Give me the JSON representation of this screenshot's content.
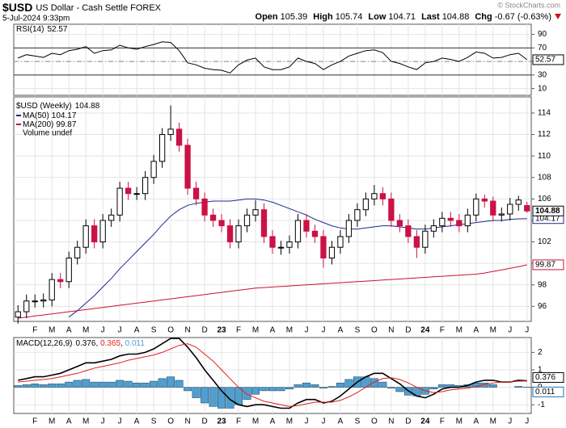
{
  "header": {
    "symbol": "$USD",
    "name": "US Dollar - Cash Settle FOREX",
    "date": "5-Jul-2024 9:33pm",
    "credit": "© StockCharts.com",
    "quote": [
      {
        "label": "Open",
        "value": 105.39
      },
      {
        "label": "High",
        "value": 105.74
      },
      {
        "label": "Low",
        "value": 104.71
      },
      {
        "label": "Last",
        "value": 104.88
      },
      {
        "label": "Chg",
        "value": -0.67,
        "pct": "(-0.63%)"
      }
    ]
  },
  "chart_data": [
    {
      "type": "line",
      "ylim": [
        0,
        105
      ],
      "yticks": [
        10,
        30,
        50,
        70,
        90
      ],
      "overbought": 70,
      "oversold": 30,
      "midline": 50,
      "grid": true,
      "series": [
        {
          "name": "RSI(14)",
          "color": "#000000",
          "values": [
            55,
            60,
            58,
            56,
            62,
            60,
            66,
            68,
            72,
            62,
            66,
            67,
            74,
            70,
            68,
            72,
            75,
            79,
            78,
            66,
            48,
            45,
            40,
            38,
            37,
            33,
            45,
            52,
            55,
            42,
            38,
            38,
            42,
            55,
            50,
            47,
            38,
            45,
            50,
            58,
            62,
            66,
            67,
            63,
            50,
            47,
            42,
            38,
            48,
            50,
            55,
            53,
            50,
            56,
            64,
            62,
            55,
            56,
            60,
            62,
            52.57
          ]
        }
      ]
    },
    {
      "type": "candlestick",
      "legend_title": "$USD (Weekly)",
      "volume_label": "Volume undef",
      "up_color": "#000000",
      "down_color": "#cc1144",
      "grid": true,
      "ylim": [
        94.6,
        115.5
      ],
      "yticks": [
        96,
        98,
        100,
        102,
        104,
        106,
        108,
        110,
        112,
        114
      ],
      "categories": [
        null,
        null,
        "F",
        null,
        "M",
        null,
        "A",
        null,
        "M",
        null,
        "J",
        null,
        "J",
        null,
        "A",
        null,
        "S",
        null,
        "O",
        null,
        "N",
        null,
        "D",
        null,
        "23",
        null,
        "F",
        null,
        "M",
        null,
        "A",
        null,
        "M",
        null,
        "J",
        null,
        "J",
        null,
        "A",
        null,
        "S",
        null,
        "O",
        null,
        "N",
        null,
        "D",
        null,
        "24",
        null,
        "F",
        null,
        "M",
        null,
        "A",
        null,
        "M",
        null,
        "J",
        null,
        "J"
      ],
      "open": [
        95.0,
        95.5,
        96.5,
        96.5,
        96.6,
        98.5,
        98.3,
        100.5,
        101.5,
        103.5,
        102.0,
        104.0,
        104.5,
        107.0,
        106.5,
        106.5,
        108.0,
        109.5,
        112.0,
        112.5,
        111.0,
        107.0,
        106.0,
        104.5,
        104.0,
        103.5,
        102.0,
        103.5,
        104.5,
        105.0,
        102.5,
        101.5,
        101.5,
        102.0,
        104.0,
        103.0,
        102.5,
        100.5,
        101.5,
        102.5,
        104.0,
        105.0,
        106.0,
        106.5,
        106.0,
        104.0,
        103.5,
        102.5,
        101.5,
        103.0,
        103.5,
        104.2,
        104.0,
        103.5,
        104.5,
        106.0,
        105.8,
        104.5,
        104.6,
        105.5,
        105.39
      ],
      "high": [
        96.1,
        97.1,
        97.1,
        97.2,
        99.1,
        99.1,
        101.1,
        102.1,
        104.1,
        104.1,
        104.6,
        105.1,
        107.6,
        107.6,
        107.1,
        108.6,
        110.1,
        112.6,
        114.7,
        113.1,
        111.6,
        107.6,
        106.6,
        105.1,
        104.6,
        104.1,
        104.1,
        105.1,
        105.9,
        105.6,
        103.1,
        102.1,
        102.6,
        104.6,
        104.6,
        103.6,
        103.1,
        102.1,
        103.1,
        104.6,
        105.6,
        106.6,
        107.3,
        107.1,
        106.6,
        104.6,
        104.1,
        103.1,
        103.6,
        104.1,
        104.8,
        104.8,
        104.6,
        105.1,
        106.5,
        106.4,
        106.2,
        105.2,
        106.1,
        106.3,
        105.74
      ],
      "low": [
        94.4,
        94.9,
        95.9,
        95.9,
        96.0,
        97.7,
        97.7,
        99.9,
        100.9,
        101.4,
        101.4,
        103.4,
        103.9,
        105.9,
        105.9,
        105.9,
        107.4,
        108.9,
        111.4,
        110.4,
        106.4,
        105.4,
        103.9,
        103.4,
        102.9,
        101.4,
        101.4,
        102.9,
        103.9,
        101.9,
        100.9,
        100.8,
        100.9,
        101.4,
        102.4,
        101.9,
        99.6,
        99.9,
        100.9,
        101.9,
        103.4,
        104.4,
        105.4,
        105.4,
        103.4,
        102.9,
        101.9,
        100.5,
        100.9,
        102.4,
        102.9,
        103.4,
        102.9,
        102.9,
        103.9,
        105.2,
        103.9,
        103.9,
        104.0,
        104.9,
        104.71
      ],
      "close": [
        95.5,
        96.5,
        96.5,
        96.6,
        98.5,
        98.3,
        100.5,
        101.5,
        103.5,
        102.0,
        104.0,
        104.5,
        107.0,
        106.5,
        106.5,
        108.0,
        109.5,
        112.0,
        112.5,
        111.0,
        107.0,
        106.0,
        104.5,
        104.0,
        103.5,
        102.0,
        103.5,
        104.5,
        105.0,
        102.5,
        101.5,
        101.5,
        102.0,
        104.0,
        103.0,
        102.5,
        100.5,
        101.5,
        102.5,
        104.0,
        105.0,
        106.0,
        106.5,
        106.0,
        104.0,
        103.5,
        102.5,
        101.5,
        103.0,
        103.5,
        104.2,
        104.0,
        103.5,
        104.5,
        106.0,
        105.8,
        104.5,
        104.6,
        105.5,
        105.9,
        104.88
      ],
      "series": [
        {
          "name": "MA(50)",
          "color": "#1c2a8a",
          "values": [
            null,
            null,
            null,
            null,
            null,
            null,
            95.0,
            95.6,
            96.3,
            97.0,
            97.8,
            98.6,
            99.5,
            100.3,
            101.1,
            101.9,
            102.7,
            103.6,
            104.4,
            105.0,
            105.4,
            105.6,
            105.7,
            105.8,
            105.8,
            105.8,
            105.9,
            106.0,
            106.0,
            105.9,
            105.7,
            105.4,
            105.1,
            104.8,
            104.5,
            104.1,
            103.8,
            103.5,
            103.3,
            103.2,
            103.2,
            103.3,
            103.4,
            103.5,
            103.5,
            103.4,
            103.3,
            103.2,
            103.2,
            103.3,
            103.4,
            103.5,
            103.6,
            103.7,
            103.8,
            103.9,
            104.0,
            104.0,
            104.1,
            104.15,
            104.17
          ]
        },
        {
          "name": "MA(200)",
          "color": "#cc1133",
          "values": [
            94.9,
            95.0,
            95.1,
            95.2,
            95.3,
            95.4,
            95.5,
            95.6,
            95.7,
            95.8,
            95.9,
            96.0,
            96.1,
            96.2,
            96.3,
            96.4,
            96.5,
            96.6,
            96.7,
            96.8,
            96.9,
            97.0,
            97.1,
            97.2,
            97.3,
            97.4,
            97.5,
            97.6,
            97.7,
            97.75,
            97.8,
            97.85,
            97.9,
            97.95,
            98.0,
            98.05,
            98.1,
            98.15,
            98.2,
            98.25,
            98.3,
            98.35,
            98.4,
            98.45,
            98.5,
            98.55,
            98.6,
            98.65,
            98.7,
            98.75,
            98.8,
            98.85,
            98.9,
            98.95,
            99.0,
            99.1,
            99.25,
            99.4,
            99.55,
            99.7,
            99.87
          ]
        }
      ]
    },
    {
      "type": "macd",
      "label": "MACD(12,26,9)",
      "separator": ", ",
      "ylim": [
        -1.5,
        2.85
      ],
      "yticks": [
        -1,
        0,
        1,
        2
      ],
      "grid": true,
      "series": [
        {
          "color": "#000000",
          "values": [
            0.4,
            0.5,
            0.6,
            0.6,
            0.7,
            0.8,
            1.0,
            1.2,
            1.4,
            1.4,
            1.5,
            1.6,
            1.8,
            1.9,
            1.9,
            2.0,
            2.2,
            2.5,
            2.8,
            2.8,
            2.3,
            1.7,
            1.0,
            0.4,
            -0.2,
            -0.7,
            -1.0,
            -1.1,
            -1.0,
            -1.0,
            -1.1,
            -1.2,
            -1.2,
            -0.9,
            -0.7,
            -0.7,
            -0.9,
            -0.8,
            -0.5,
            -0.1,
            0.3,
            0.6,
            0.8,
            0.8,
            0.5,
            0.2,
            -0.2,
            -0.5,
            -0.6,
            -0.4,
            -0.1,
            0.0,
            0.0,
            0.1,
            0.3,
            0.4,
            0.4,
            0.3,
            0.3,
            0.4,
            0.376
          ]
        },
        {
          "color": "#e2201b",
          "values": [
            0.3,
            0.35,
            0.4,
            0.45,
            0.5,
            0.6,
            0.7,
            0.8,
            0.95,
            1.1,
            1.2,
            1.3,
            1.4,
            1.55,
            1.65,
            1.75,
            1.85,
            2.0,
            2.2,
            2.4,
            2.5,
            2.3,
            1.9,
            1.5,
            1.0,
            0.5,
            0.0,
            -0.4,
            -0.6,
            -0.8,
            -0.9,
            -1.0,
            -1.1,
            -1.05,
            -0.95,
            -0.85,
            -0.85,
            -0.85,
            -0.75,
            -0.55,
            -0.3,
            0.0,
            0.3,
            0.5,
            0.55,
            0.45,
            0.25,
            0.0,
            -0.2,
            -0.3,
            -0.25,
            -0.15,
            -0.1,
            -0.05,
            0.05,
            0.15,
            0.25,
            0.3,
            0.3,
            0.35,
            0.365
          ]
        },
        {
          "color": "#4f9fd0",
          "style": "bar",
          "values": [
            0.1,
            0.15,
            0.2,
            0.15,
            0.2,
            0.2,
            0.3,
            0.4,
            0.45,
            0.3,
            0.3,
            0.3,
            0.4,
            0.35,
            0.25,
            0.25,
            0.35,
            0.5,
            0.6,
            0.4,
            -0.2,
            -0.6,
            -0.9,
            -1.1,
            -1.2,
            -1.2,
            -1.0,
            -0.7,
            -0.4,
            -0.2,
            -0.2,
            -0.2,
            -0.1,
            0.15,
            0.25,
            0.15,
            -0.05,
            0.05,
            0.25,
            0.45,
            0.6,
            0.6,
            0.5,
            0.3,
            -0.05,
            -0.25,
            -0.45,
            -0.5,
            -0.4,
            -0.1,
            0.15,
            0.15,
            0.1,
            0.15,
            0.25,
            0.25,
            0.15,
            0.0,
            0.0,
            0.05,
            0.011
          ]
        }
      ]
    }
  ]
}
